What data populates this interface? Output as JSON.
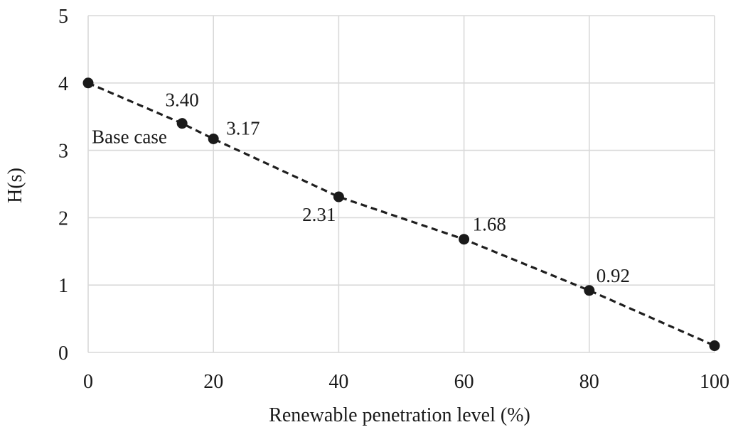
{
  "chart_data": {
    "type": "line",
    "title": "",
    "xlabel": "Renewable penetration level (%)",
    "ylabel": "H(s)",
    "xlim": [
      0,
      100
    ],
    "ylim": [
      0,
      5
    ],
    "x_ticks": [
      "0",
      "20",
      "40",
      "60",
      "80",
      "100"
    ],
    "y_ticks": [
      "0",
      "1",
      "2",
      "3",
      "4",
      "5"
    ],
    "grid": true,
    "line_style": "dashed",
    "colors": {
      "line": "#1f1f1f",
      "grid": "#d9d9d9"
    },
    "series": [
      {
        "x": [
          0,
          15,
          20,
          40,
          60,
          80,
          100
        ],
        "y": [
          4.0,
          3.4,
          3.17,
          2.31,
          1.68,
          0.92,
          0.1
        ]
      }
    ],
    "annotations": [
      {
        "text": "3.40",
        "x": 15,
        "y": 3.4
      },
      {
        "text": "3.17",
        "x": 20,
        "y": 3.17
      },
      {
        "text": "2.31",
        "x": 40,
        "y": 2.31
      },
      {
        "text": "1.68",
        "x": 60,
        "y": 1.68
      },
      {
        "text": "0.92",
        "x": 80,
        "y": 0.92
      },
      {
        "text": "Base case",
        "x": 15,
        "y": 3.4
      }
    ]
  }
}
